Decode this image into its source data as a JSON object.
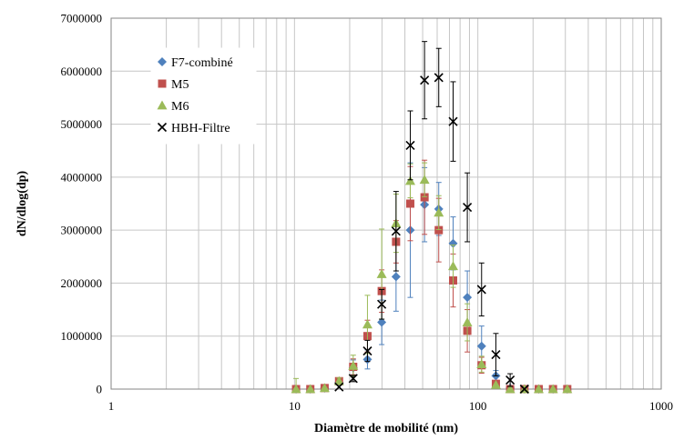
{
  "chart_data": {
    "type": "scatter",
    "title": "",
    "xlabel": "Diamètre de mobilité (nm)",
    "ylabel": "dN/dlog(dp)",
    "x_scale": "log",
    "xlim": [
      1,
      1000
    ],
    "ylim": [
      0,
      7000000
    ],
    "x_ticks": [
      1,
      10,
      100,
      1000
    ],
    "x_tick_labels": [
      "1",
      "10",
      "100",
      "1000"
    ],
    "y_ticks": [
      0,
      1000000,
      2000000,
      3000000,
      4000000,
      5000000,
      6000000,
      7000000
    ],
    "y_tick_labels": [
      "0",
      "1000000",
      "2000000",
      "3000000",
      "4000000",
      "5000000",
      "6000000",
      "7000000"
    ],
    "grid": true,
    "legend_position": "top-left",
    "series": [
      {
        "name": "F7-combiné",
        "marker": "diamond",
        "color": "#4F81BD",
        "errorbar_color": "#4F81BD",
        "x": [
          10.2,
          12.2,
          14.6,
          17.5,
          20.9,
          25,
          29.9,
          35.8,
          42.8,
          51.2,
          61.2,
          73.3,
          87.6,
          104.8,
          125.4,
          150,
          179.5,
          214.7,
          256.9,
          307.3
        ],
        "y": [
          0,
          0,
          20000,
          130000,
          400000,
          560000,
          1260000,
          2120000,
          3000000,
          3480000,
          3400000,
          2750000,
          1730000,
          810000,
          250000,
          20000,
          0,
          0,
          0,
          0
        ],
        "err": [
          0,
          0,
          0,
          50000,
          150000,
          180000,
          420000,
          650000,
          1270000,
          700000,
          500000,
          500000,
          500000,
          380000,
          100000,
          0,
          0,
          0,
          0,
          0
        ]
      },
      {
        "name": "M5",
        "marker": "square",
        "color": "#C0504D",
        "errorbar_color": "#C0504D",
        "x": [
          10.2,
          12.2,
          14.6,
          17.5,
          20.9,
          25,
          29.9,
          35.8,
          42.8,
          51.2,
          61.2,
          73.3,
          87.6,
          104.8,
          125.4,
          150,
          179.5,
          214.7,
          256.9,
          307.3
        ],
        "y": [
          0,
          0,
          20000,
          150000,
          420000,
          1000000,
          1850000,
          2780000,
          3500000,
          3620000,
          3000000,
          2050000,
          1100000,
          450000,
          100000,
          0,
          0,
          0,
          0,
          0
        ],
        "err": [
          0,
          0,
          0,
          60000,
          150000,
          300000,
          400000,
          400000,
          700000,
          700000,
          600000,
          500000,
          400000,
          150000,
          0,
          0,
          0,
          0,
          0,
          0
        ]
      },
      {
        "name": "M6",
        "marker": "triangle",
        "color": "#9BBB59",
        "errorbar_color": "#9BBB59",
        "x": [
          10.2,
          12.2,
          14.6,
          17.5,
          20.9,
          25,
          29.9,
          35.8,
          42.8,
          51.2,
          61.2,
          73.3,
          87.6,
          104.8,
          125.4,
          150,
          179.5,
          214.7,
          256.9,
          307.3
        ],
        "y": [
          0,
          0,
          20000,
          150000,
          440000,
          1220000,
          2170000,
          3130000,
          3930000,
          3950000,
          3330000,
          2320000,
          1260000,
          470000,
          80000,
          0,
          0,
          0,
          0,
          0
        ],
        "err": [
          200000,
          0,
          0,
          60000,
          200000,
          550000,
          850000,
          550000,
          320000,
          320000,
          320000,
          400000,
          350000,
          150000,
          0,
          0,
          0,
          0,
          0,
          0
        ]
      },
      {
        "name": "HBH-Filtre",
        "marker": "x",
        "color": "#000000",
        "errorbar_color": "#000000",
        "x": [
          17.5,
          20.9,
          25,
          29.9,
          35.8,
          42.8,
          51.2,
          61.2,
          73.3,
          87.6,
          104.8,
          125.4,
          150,
          179.5
        ],
        "y": [
          40000,
          200000,
          720000,
          1600000,
          2980000,
          4600000,
          5830000,
          5880000,
          5050000,
          3430000,
          1880000,
          650000,
          170000,
          0
        ],
        "err": [
          0,
          60000,
          200000,
          280000,
          750000,
          650000,
          730000,
          550000,
          750000,
          650000,
          500000,
          400000,
          120000,
          0
        ]
      }
    ]
  }
}
